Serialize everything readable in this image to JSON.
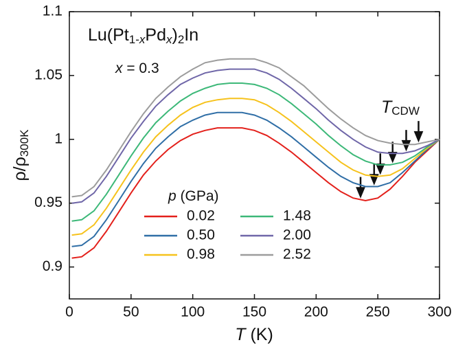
{
  "chart_data": {
    "type": "line",
    "title": [
      "Lu(Pt",
      "1-",
      "x",
      "Pd",
      "x",
      ")",
      "2",
      "In"
    ],
    "subtitle": [
      "x",
      " = 0.3"
    ],
    "x_label": [
      "T",
      " (K)"
    ],
    "y_label": [
      "ρ/ρ",
      "300K"
    ],
    "legend_title": [
      "p",
      " (GPa)"
    ],
    "tcdw_label": [
      "T",
      "CDW"
    ],
    "xlim": [
      0,
      300
    ],
    "xticks": [
      0,
      50,
      100,
      150,
      200,
      250,
      300
    ],
    "ylim": [
      0.875,
      1.1
    ],
    "yticks": [
      0.9,
      0.95,
      1,
      1.05,
      1.1
    ],
    "x": [
      2,
      10,
      20,
      30,
      40,
      50,
      60,
      70,
      80,
      90,
      100,
      110,
      120,
      130,
      140,
      150,
      160,
      170,
      180,
      190,
      200,
      210,
      220,
      230,
      240,
      250,
      260,
      270,
      280,
      290,
      300
    ],
    "series": [
      {
        "name": "0.02",
        "color": "#e3201b",
        "tcdw": 236,
        "values": [
          0.907,
          0.908,
          0.915,
          0.928,
          0.943,
          0.958,
          0.972,
          0.983,
          0.992,
          0.999,
          1.004,
          1.007,
          1.009,
          1.009,
          1.009,
          1.007,
          1.003,
          0.997,
          0.99,
          0.982,
          0.974,
          0.966,
          0.959,
          0.954,
          0.952,
          0.954,
          0.961,
          0.971,
          0.982,
          0.991,
          1.0
        ]
      },
      {
        "name": "0.50",
        "color": "#2f6ea6",
        "tcdw": 247,
        "values": [
          0.916,
          0.917,
          0.924,
          0.937,
          0.952,
          0.967,
          0.981,
          0.993,
          1.002,
          1.01,
          1.015,
          1.019,
          1.021,
          1.021,
          1.021,
          1.019,
          1.015,
          1.009,
          1.002,
          0.994,
          0.986,
          0.978,
          0.971,
          0.966,
          0.963,
          0.963,
          0.966,
          0.974,
          0.983,
          0.992,
          1.0
        ]
      },
      {
        "name": "0.98",
        "color": "#f6c21c",
        "tcdw": 252,
        "values": [
          0.925,
          0.926,
          0.933,
          0.946,
          0.961,
          0.976,
          0.99,
          1.002,
          1.011,
          1.019,
          1.025,
          1.029,
          1.031,
          1.032,
          1.032,
          1.031,
          1.027,
          1.021,
          1.014,
          1.006,
          0.998,
          0.99,
          0.982,
          0.976,
          0.972,
          0.971,
          0.972,
          0.977,
          0.985,
          0.993,
          1.0
        ]
      },
      {
        "name": "1.48",
        "color": "#3cb878",
        "tcdw": 262,
        "values": [
          0.936,
          0.937,
          0.944,
          0.957,
          0.972,
          0.987,
          1.001,
          1.013,
          1.022,
          1.03,
          1.036,
          1.04,
          1.043,
          1.044,
          1.044,
          1.043,
          1.04,
          1.035,
          1.028,
          1.02,
          1.012,
          1.003,
          0.995,
          0.988,
          0.983,
          0.98,
          0.98,
          0.982,
          0.987,
          0.994,
          1.0
        ]
      },
      {
        "name": "2.00",
        "color": "#6f66a8",
        "tcdw": 273,
        "values": [
          0.95,
          0.951,
          0.958,
          0.971,
          0.986,
          1.001,
          1.014,
          1.026,
          1.035,
          1.043,
          1.048,
          1.052,
          1.054,
          1.055,
          1.055,
          1.055,
          1.052,
          1.047,
          1.04,
          1.032,
          1.024,
          1.015,
          1.007,
          1.0,
          0.994,
          0.99,
          0.989,
          0.989,
          0.991,
          0.995,
          1.0
        ]
      },
      {
        "name": "2.52",
        "color": "#9c9c9c",
        "tcdw": 283,
        "values": [
          0.955,
          0.956,
          0.963,
          0.976,
          0.991,
          1.006,
          1.02,
          1.032,
          1.041,
          1.049,
          1.055,
          1.06,
          1.062,
          1.063,
          1.063,
          1.063,
          1.06,
          1.056,
          1.049,
          1.042,
          1.033,
          1.024,
          1.016,
          1.009,
          1.003,
          0.999,
          0.997,
          0.996,
          0.996,
          0.998,
          1.0
        ]
      }
    ]
  }
}
